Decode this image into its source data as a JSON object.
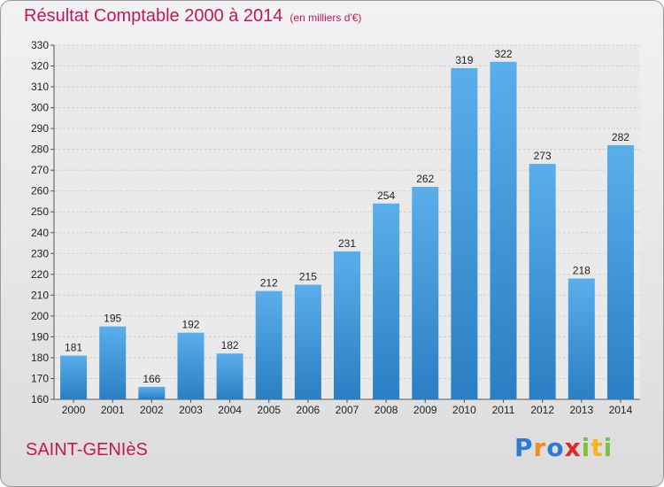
{
  "chart_data": {
    "type": "bar",
    "title": "Résultat Comptable 2000 à 2014",
    "subtitle": "(en milliers d'€)",
    "categories": [
      "2000",
      "2001",
      "2002",
      "2003",
      "2004",
      "2005",
      "2006",
      "2007",
      "2008",
      "2009",
      "2010",
      "2011",
      "2012",
      "2013",
      "2014"
    ],
    "values": [
      181,
      195,
      166,
      192,
      182,
      212,
      215,
      231,
      254,
      262,
      319,
      322,
      273,
      218,
      282
    ],
    "ylim": [
      160,
      330
    ],
    "yticks": [
      160,
      170,
      180,
      190,
      200,
      210,
      220,
      230,
      240,
      250,
      260,
      270,
      280,
      290,
      300,
      310,
      320,
      330
    ],
    "grid": true,
    "bar_color": "#3a8fd6"
  },
  "footer": {
    "commune": "SAINT-GENIèS",
    "logo_letters": [
      "P",
      "r",
      "o",
      "x",
      "i",
      "t",
      "i"
    ],
    "logo_colors": [
      "#2e7bd6",
      "#f28c1b",
      "#2e7bd6",
      "#e02a2a",
      "#7cc242",
      "#f2b51b",
      "#7cc242"
    ]
  }
}
